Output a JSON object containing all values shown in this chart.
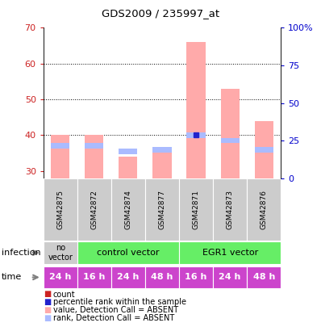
{
  "title": "GDS2009 / 235997_at",
  "samples": [
    "GSM42875",
    "GSM42872",
    "GSM42874",
    "GSM42877",
    "GSM42871",
    "GSM42873",
    "GSM42876"
  ],
  "time_labels": [
    "24 h",
    "16 h",
    "24 h",
    "48 h",
    "16 h",
    "24 h",
    "48 h"
  ],
  "time_color": "#cc44cc",
  "ylim_left": [
    28,
    70
  ],
  "ylim_right": [
    0,
    100
  ],
  "yticks_left": [
    30,
    40,
    50,
    60,
    70
  ],
  "yticks_right": [
    0,
    25,
    50,
    75,
    100
  ],
  "yticklabels_right": [
    "0",
    "25",
    "50",
    "75",
    "100%"
  ],
  "bar_values": [
    40.0,
    40.0,
    34.0,
    36.0,
    66.0,
    53.0,
    44.0
  ],
  "rank_values": [
    37.0,
    37.0,
    35.5,
    36.0,
    40.0,
    38.5,
    36.0
  ],
  "bar_color_absent": "#ffaaaa",
  "rank_color_absent": "#aabbff",
  "rank_dot_color": "#2222cc",
  "legend_items": [
    {
      "color": "#cc2222",
      "label": "count"
    },
    {
      "color": "#2222cc",
      "label": "percentile rank within the sample"
    },
    {
      "color": "#ffaaaa",
      "label": "value, Detection Call = ABSENT"
    },
    {
      "color": "#aabbff",
      "label": "rank, Detection Call = ABSENT"
    }
  ],
  "infection_no_vector_color": "#cccccc",
  "infection_vector_color": "#66ee66",
  "axis_label_color_left": "#cc2222",
  "axis_label_color_right": "#0000cc",
  "grid_yticks": [
    40,
    50,
    60
  ],
  "bar_width": 0.55,
  "rank_bar_height": 1.5
}
